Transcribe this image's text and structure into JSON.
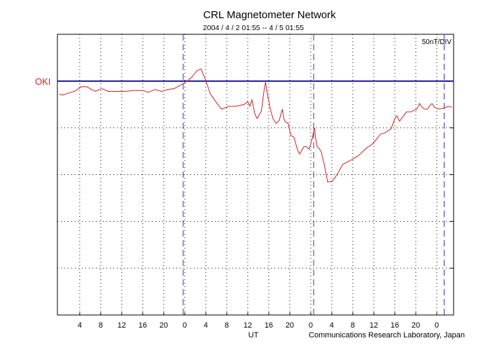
{
  "chart_data": {
    "type": "line",
    "title": "CRL Magnetometer Network",
    "subtitle": "2004 / 4 / 2   01:55 --  4 / 5   01:55",
    "scale_label": "50nT/DIV",
    "xlabel": "UT",
    "credit": "Communications Research Laboratory, Japan",
    "station": "OKI",
    "x_tick_labels": [
      "4",
      "8",
      "12",
      "16",
      "20",
      "0",
      "4",
      "8",
      "12",
      "16",
      "20",
      "0",
      "4",
      "8",
      "12",
      "16",
      "20",
      "0"
    ],
    "x_tick_hours": [
      4,
      8,
      12,
      16,
      20,
      24,
      28,
      32,
      36,
      40,
      44,
      48,
      52,
      56,
      60,
      64,
      68,
      72
    ],
    "day_boundaries_hours": [
      23.7,
      48.55,
      73.4
    ],
    "xlim_hours": [
      -0.25,
      75.2
    ],
    "y_unit": "nT",
    "ylim": [
      -250,
      50
    ],
    "grid": true,
    "colors": {
      "trace": "#cc2222",
      "baseline": "#1a1aa0",
      "day_line": "#3333bb",
      "station": "#cc2222"
    },
    "series": [
      {
        "values_x_hours": [
          0.1,
          0.8,
          1.7,
          3.0,
          4.3,
          5.4,
          6.2,
          7.0,
          8.2,
          9.4,
          11.0,
          12.6,
          14.4,
          16.0,
          17.1,
          18.3,
          19.6,
          20.8,
          22.0,
          23.6,
          24.5,
          25.3,
          26.3,
          27.1,
          27.9,
          28.9,
          29.9,
          31.0,
          32.4,
          33.8,
          34.5,
          35.3,
          36.0,
          36.4,
          36.8,
          37.4,
          37.8,
          38.6,
          39.1,
          39.4,
          39.8,
          40.3,
          40.8,
          41.4,
          42.0,
          42.6,
          42.9,
          43.2,
          43.7,
          44.2,
          44.8,
          45.5,
          45.9,
          46.3,
          46.7,
          47.1,
          47.7,
          48.3,
          48.5,
          48.7,
          48.9,
          49.2,
          49.6,
          50.0,
          50.6,
          51.2,
          52.1,
          53.0,
          54.1,
          55.5,
          57.0,
          58.5,
          59.6,
          60.4,
          61.2,
          62.2,
          63.3,
          64.0,
          64.4,
          64.9,
          66.2,
          67.1,
          67.7,
          68.2,
          68.7,
          69.2,
          69.7,
          70.2,
          70.7,
          71.1,
          71.6,
          72.3,
          73.3,
          74.2,
          74.9
        ],
        "values_nT": [
          -14,
          -15,
          -13,
          -11,
          -6,
          -6,
          -9,
          -11,
          -8,
          -11,
          -11,
          -11,
          -10,
          -10,
          -12,
          -9,
          -11,
          -9,
          -8,
          -3,
          0,
          4,
          11,
          13,
          2,
          -14,
          -22,
          -30,
          -27,
          -27,
          -26,
          -25,
          -22,
          -27,
          -20,
          -36,
          -40,
          -32,
          -10,
          -1,
          -16,
          -30,
          -40,
          -45,
          -42,
          -30,
          -41,
          -44,
          -45,
          -58,
          -60,
          -74,
          -78,
          -74,
          -70,
          -70,
          -73,
          -61,
          -55,
          -50,
          -60,
          -70,
          -72,
          -76,
          -90,
          -108,
          -107,
          -100,
          -89,
          -85,
          -80,
          -72,
          -68,
          -63,
          -57,
          -55,
          -51,
          -40,
          -37,
          -43,
          -33,
          -33,
          -31,
          -30,
          -24,
          -28,
          -30,
          -30,
          -26,
          -24,
          -28,
          -30,
          -29,
          -27,
          -28
        ]
      }
    ]
  }
}
